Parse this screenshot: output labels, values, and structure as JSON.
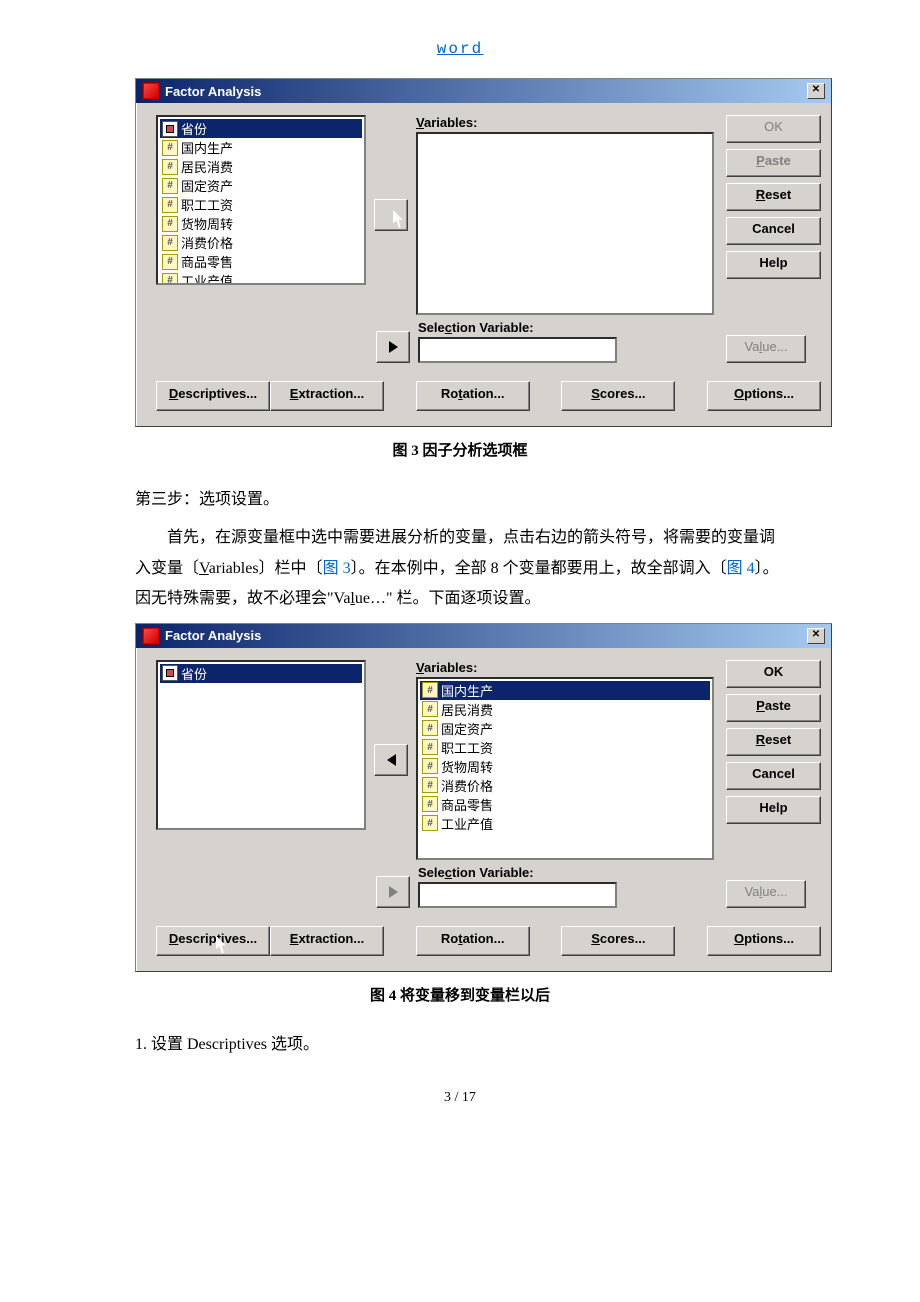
{
  "header_link": "word",
  "dialog1": {
    "title": "Factor Analysis",
    "source_vars": [
      {
        "name": "省份",
        "type": "nominal",
        "selected": true
      },
      {
        "name": "国内生产",
        "type": "scale",
        "selected": false
      },
      {
        "name": "居民消费",
        "type": "scale",
        "selected": false
      },
      {
        "name": "固定资产",
        "type": "scale",
        "selected": false
      },
      {
        "name": "职工工资",
        "type": "scale",
        "selected": false
      },
      {
        "name": "货物周转",
        "type": "scale",
        "selected": false
      },
      {
        "name": "消费价格",
        "type": "scale",
        "selected": false
      },
      {
        "name": "商品零售",
        "type": "scale",
        "selected": false
      },
      {
        "name": "工业产值",
        "type": "scale",
        "selected": false
      }
    ],
    "variables_label": "Variables:",
    "selection_label": "Selection Variable:",
    "value_btn": "Value...",
    "right_buttons": {
      "ok": "OK",
      "paste": "Paste",
      "reset": "Reset",
      "cancel": "Cancel",
      "help": "Help"
    },
    "bottom_buttons": {
      "descriptives": "Descriptives...",
      "extraction": "Extraction...",
      "rotation": "Rotation...",
      "scores": "Scores...",
      "options": "Options..."
    }
  },
  "caption1": "图 3 因子分析选项框",
  "para1": "第三步：选项设置。",
  "para2_pre": "首先，在源变量框中选中需要进展分析的变量，点击右边的箭头符号，将需要的变量调入变量〔",
  "para2_u1": "V",
  "para2_mid1": "ariables〕栏中〔",
  "para2_ref1": "图 3",
  "para2_mid2": "〕。在本例中，全部 8 个变量都要用上，故全部调入〔",
  "para2_ref2": "图 4",
  "para2_mid3": "〕。因无特殊需要，故不必理会\"Va",
  "para2_u2": "l",
  "para2_end": "ue…\" 栏。下面逐项设置。",
  "dialog2": {
    "title": "Factor Analysis",
    "source_vars": [
      {
        "name": "省份",
        "type": "nominal",
        "selected": true
      }
    ],
    "target_vars": [
      {
        "name": "国内生产",
        "type": "scale",
        "selected": true
      },
      {
        "name": "居民消费",
        "type": "scale",
        "selected": false
      },
      {
        "name": "固定资产",
        "type": "scale",
        "selected": false
      },
      {
        "name": "职工工资",
        "type": "scale",
        "selected": false
      },
      {
        "name": "货物周转",
        "type": "scale",
        "selected": false
      },
      {
        "name": "消费价格",
        "type": "scale",
        "selected": false
      },
      {
        "name": "商品零售",
        "type": "scale",
        "selected": false
      },
      {
        "name": "工业产值",
        "type": "scale",
        "selected": false
      }
    ]
  },
  "caption2": "图 4 将变量移到变量栏以后",
  "para3": "1. 设置 Descriptives 选项。",
  "footer": "3 / 17"
}
